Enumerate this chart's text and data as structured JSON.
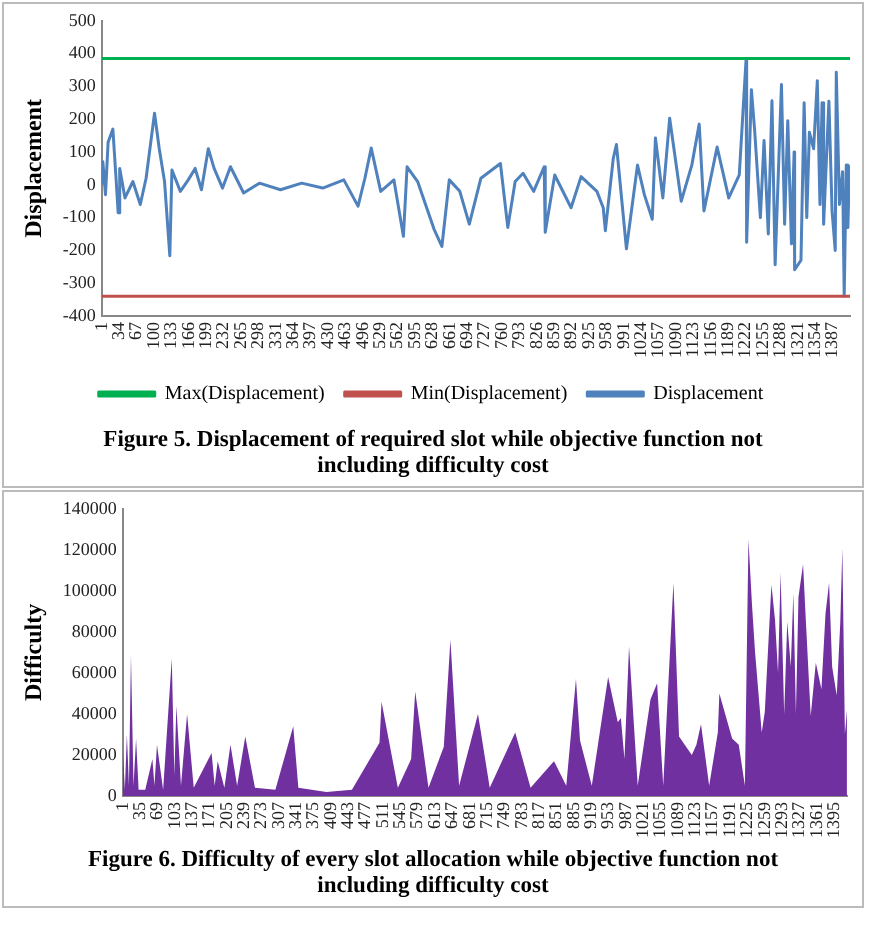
{
  "chart_data": [
    {
      "type": "line",
      "title": "Figure 5. Displacement of required slot while objective function not including difficulty cost",
      "ylabel": "Displacement",
      "xlim": [
        1,
        1420
      ],
      "xticks": [
        1,
        34,
        67,
        100,
        133,
        166,
        199,
        232,
        265,
        298,
        331,
        364,
        397,
        430,
        463,
        496,
        529,
        562,
        595,
        628,
        661,
        694,
        727,
        760,
        793,
        826,
        859,
        892,
        925,
        958,
        991,
        1024,
        1057,
        1090,
        1123,
        1156,
        1189,
        1222,
        1255,
        1288,
        1321,
        1354,
        1387
      ],
      "ylim": [
        -400,
        500
      ],
      "yticks": [
        -400,
        -300,
        -200,
        -100,
        0,
        100,
        200,
        300,
        400,
        500
      ],
      "grid": false,
      "legend": "bottom",
      "marker": "none",
      "series": [
        {
          "name": "Max(Displacement)",
          "color": "#00b050",
          "x": [
            1,
            1420
          ],
          "values": [
            385,
            385
          ]
        },
        {
          "name": "Min(Displacement)",
          "color": "#c0504d",
          "x": [
            1,
            1420
          ],
          "values": [
            -340,
            -340
          ]
        },
        {
          "name": "Displacement",
          "color": "#4f81bd",
          "x": [
            1,
            3,
            8,
            13,
            22,
            28,
            32,
            35,
            45,
            60,
            74,
            85,
            101,
            110,
            120,
            130,
            134,
            150,
            165,
            178,
            190,
            203,
            214,
            230,
            245,
            270,
            300,
            340,
            380,
            420,
            460,
            487,
            500,
            512,
            530,
            555,
            573,
            580,
            600,
            631,
            646,
            660,
            680,
            698,
            720,
            757,
            771,
            785,
            800,
            820,
            840,
            842,
            860,
            891,
            910,
            940,
            952,
            956,
            971,
            977,
            996,
            1017,
            1030,
            1045,
            1051,
            1065,
            1078,
            1100,
            1120,
            1134,
            1143,
            1168,
            1190,
            1210,
            1223,
            1224,
            1233,
            1239,
            1250,
            1257,
            1265,
            1272,
            1278,
            1290,
            1296,
            1302,
            1309,
            1314,
            1315,
            1327,
            1333,
            1338,
            1343,
            1351,
            1358,
            1363,
            1367,
            1370,
            1380,
            1386,
            1392,
            1394,
            1400,
            1406,
            1409,
            1413,
            1416,
            1419
          ],
          "values": [
            0,
            70,
            -30,
            130,
            170,
            20,
            -85,
            50,
            -40,
            10,
            -60,
            20,
            218,
            110,
            10,
            -216,
            45,
            -20,
            15,
            50,
            -15,
            110,
            50,
            -10,
            55,
            -25,
            5,
            -15,
            5,
            -10,
            15,
            -65,
            20,
            112,
            -20,
            15,
            -157,
            55,
            10,
            -135,
            -188,
            15,
            -20,
            -120,
            20,
            65,
            -130,
            10,
            35,
            -20,
            55,
            -145,
            30,
            -70,
            25,
            -20,
            -70,
            -140,
            80,
            123,
            -195,
            60,
            -30,
            -105,
            143,
            -40,
            203,
            -50,
            60,
            185,
            -80,
            115,
            -40,
            30,
            385,
            -175,
            290,
            170,
            -100,
            135,
            -150,
            256,
            -244,
            306,
            -120,
            195,
            -180,
            100,
            -259,
            -230,
            250,
            -100,
            160,
            110,
            317,
            -60,
            250,
            -120,
            255,
            -80,
            -200,
            343,
            -60,
            40,
            -340,
            60,
            -130,
            60
          ]
        }
      ]
    },
    {
      "type": "area",
      "title": "Figure 6. Difficulty of every slot allocation while objective function not including difficulty cost",
      "ylabel": "Difficulty",
      "xlim": [
        1,
        1420
      ],
      "xticks": [
        1,
        35,
        69,
        103,
        137,
        171,
        205,
        239,
        273,
        307,
        341,
        375,
        409,
        443,
        477,
        511,
        545,
        579,
        613,
        647,
        681,
        715,
        749,
        783,
        817,
        851,
        885,
        919,
        953,
        987,
        1021,
        1055,
        1089,
        1123,
        1157,
        1191,
        1225,
        1259,
        1293,
        1327,
        1361,
        1395
      ],
      "ylim": [
        0,
        140000
      ],
      "yticks": [
        0,
        20000,
        40000,
        60000,
        80000,
        100000,
        120000,
        140000
      ],
      "grid": false,
      "color": "#7030a0",
      "marker": "none",
      "x": [
        1,
        5,
        9,
        13,
        17,
        22,
        27,
        32,
        45,
        59,
        63,
        68,
        80,
        97,
        102,
        106,
        115,
        127,
        140,
        175,
        181,
        187,
        200,
        212,
        225,
        241,
        260,
        300,
        335,
        345,
        400,
        450,
        504,
        508,
        540,
        566,
        574,
        600,
        630,
        643,
        660,
        697,
        720,
        770,
        800,
        846,
        870,
        889,
        897,
        920,
        952,
        971,
        977,
        984,
        993,
        1010,
        1035,
        1048,
        1060,
        1080,
        1091,
        1116,
        1125,
        1134,
        1150,
        1167,
        1170,
        1195,
        1208,
        1220,
        1227,
        1234,
        1240,
        1253,
        1259,
        1272,
        1279,
        1285,
        1290,
        1297,
        1303,
        1310,
        1315,
        1320,
        1325,
        1334,
        1340,
        1349,
        1359,
        1370,
        1378,
        1385,
        1391,
        1400,
        1407,
        1411,
        1416,
        1420
      ],
      "values": [
        24000,
        3000,
        30000,
        5000,
        69000,
        5000,
        28000,
        3000,
        3000,
        18000,
        5000,
        25000,
        3000,
        67000,
        10000,
        44000,
        5000,
        40000,
        4000,
        21000,
        5000,
        17000,
        4000,
        25000,
        5000,
        29000,
        4000,
        3000,
        34000,
        4000,
        2000,
        3000,
        26000,
        46000,
        4000,
        18000,
        51000,
        4000,
        24000,
        76000,
        5000,
        40000,
        4000,
        31000,
        4000,
        17000,
        5000,
        57000,
        27000,
        5000,
        58000,
        36000,
        38000,
        18000,
        73000,
        5000,
        47000,
        55000,
        5000,
        104000,
        29000,
        20000,
        25000,
        35000,
        5000,
        31000,
        50000,
        28000,
        25000,
        5000,
        125000,
        93000,
        70000,
        31000,
        41000,
        103000,
        86000,
        60000,
        109000,
        40000,
        85000,
        63000,
        99000,
        40000,
        97000,
        113000,
        83000,
        39000,
        65000,
        52000,
        89000,
        104000,
        63000,
        49000,
        85000,
        121000,
        30000,
        42000
      ]
    }
  ]
}
